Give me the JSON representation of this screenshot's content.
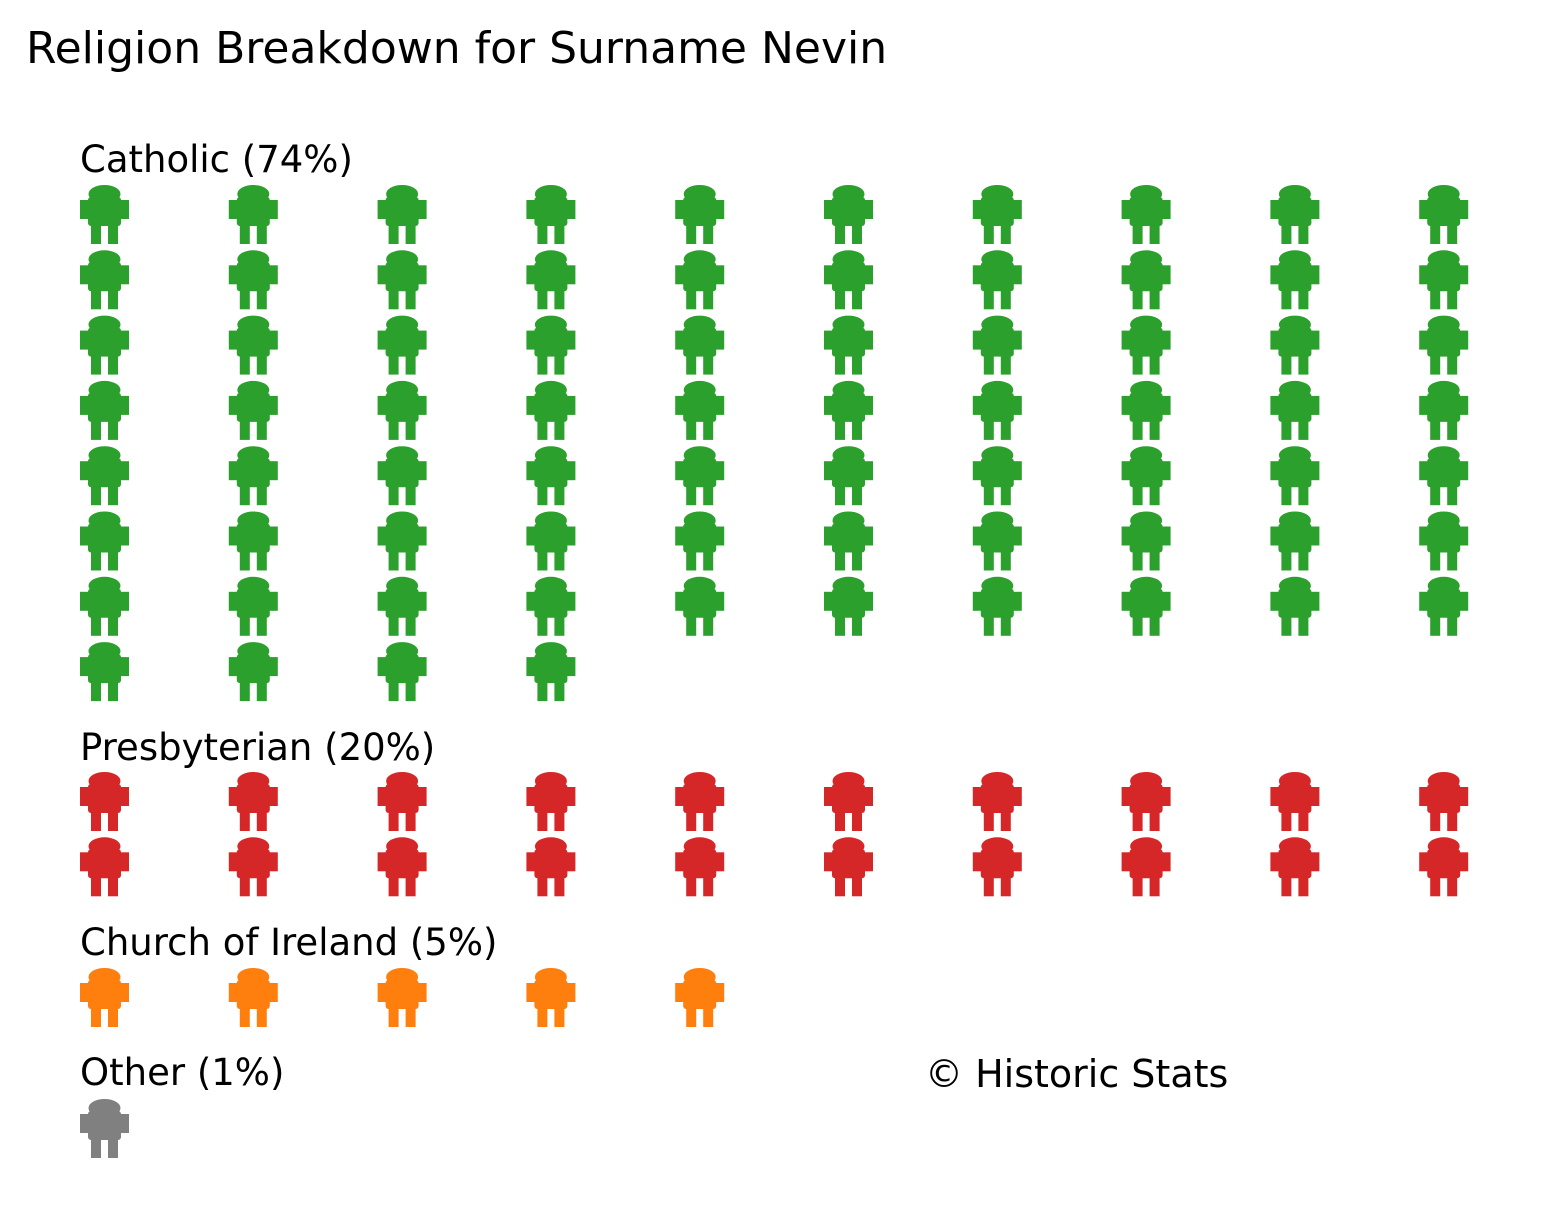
{
  "chart_data": {
    "type": "pictogram",
    "title": "Religion Breakdown for Surname Nevin",
    "unit": "1 icon = 1%",
    "icon": "person-icon",
    "categories": [
      {
        "name": "Catholic",
        "label": "Catholic (74%)",
        "percent": 74,
        "color": "#2ca02c"
      },
      {
        "name": "Presbyterian",
        "label": "Presbyterian (20%)",
        "percent": 20,
        "color": "#d62728"
      },
      {
        "name": "Church of Ireland",
        "label": "Church of Ireland (5%)",
        "percent": 5,
        "color": "#ff7f0e"
      },
      {
        "name": "Other",
        "label": "Other (1%)",
        "percent": 1,
        "color": "#808080"
      }
    ],
    "icons_per_row": 10,
    "credit": "© Historic Stats"
  }
}
